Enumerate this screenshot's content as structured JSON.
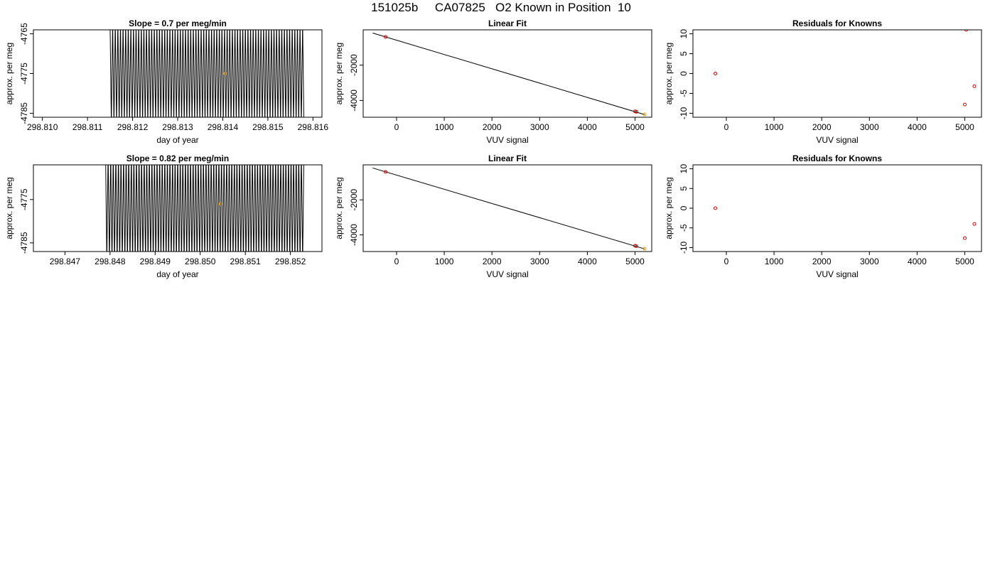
{
  "page": {
    "title": "151025b     CA07825   O2 Known in Position  10"
  },
  "chart_data": [
    {
      "type": "line",
      "title": "Slope =  0.7  per meg/min",
      "xlabel": "day of year",
      "ylabel": "approx. per meg",
      "xlim": [
        298.8098,
        298.8162
      ],
      "ylim": [
        -4786,
        -4764
      ],
      "xticks": [
        298.81,
        298.811,
        298.812,
        298.813,
        298.814,
        298.815,
        298.816
      ],
      "xtick_labels": [
        "298.810",
        "298.811",
        "298.812",
        "298.813",
        "298.814",
        "298.815",
        "298.816"
      ],
      "yticks": [
        -4765,
        -4775,
        -4785
      ],
      "ytick_labels": [
        "-4765",
        "-4775",
        "-4785"
      ],
      "series": [
        {
          "color": "#000000",
          "trace": {
            "x_start": 298.8115,
            "x_end": 298.8158,
            "n_points": 150,
            "y_low": -4788,
            "y_high": -4762
          }
        }
      ],
      "marker": {
        "x": 298.81405,
        "y": -4775,
        "color": "#e89b00"
      }
    },
    {
      "type": "scatter",
      "title": "Linear Fit",
      "xlabel": "VUV signal",
      "ylabel": "approx. per meg",
      "xlim": [
        -700,
        5350
      ],
      "ylim": [
        -4950,
        0
      ],
      "xticks": [
        0,
        1000,
        2000,
        3000,
        4000,
        5000
      ],
      "xtick_labels": [
        "0",
        "1000",
        "2000",
        "3000",
        "4000",
        "5000"
      ],
      "yticks": [
        -2000,
        -4000
      ],
      "ytick_labels": [
        "-2000",
        "-4000"
      ],
      "fit_line": {
        "x": [
          -500,
          5200
        ],
        "y": [
          -180,
          -4800
        ]
      },
      "points": [
        {
          "x": -230,
          "y": -400,
          "color": "#cc0000"
        },
        {
          "x": 5000,
          "y": -4620,
          "color": "#cc0000"
        },
        {
          "x": 5030,
          "y": -4640,
          "color": "#cc0000"
        },
        {
          "x": 5200,
          "y": -4790,
          "color": "#e89b00"
        }
      ]
    },
    {
      "type": "scatter",
      "title": "Residuals for Knowns",
      "xlabel": "VUV signal",
      "ylabel": "approx. per meg",
      "xlim": [
        -700,
        5350
      ],
      "ylim": [
        -11,
        11
      ],
      "xticks": [
        0,
        1000,
        2000,
        3000,
        4000,
        5000
      ],
      "xtick_labels": [
        "0",
        "1000",
        "2000",
        "3000",
        "4000",
        "5000"
      ],
      "yticks": [
        10,
        5,
        0,
        -5,
        -10
      ],
      "ytick_labels": [
        "10",
        "5",
        "0",
        "-5",
        "-10"
      ],
      "points": [
        {
          "x": -230,
          "y": 0,
          "color": "#cc0000"
        },
        {
          "x": 5030,
          "y": 11,
          "color": "#cc0000"
        },
        {
          "x": 5200,
          "y": -3.2,
          "color": "#cc0000"
        },
        {
          "x": 5000,
          "y": -7.8,
          "color": "#cc0000"
        }
      ]
    },
    {
      "type": "line",
      "title": "Slope =  0.82  per meg/min",
      "xlabel": "day of year",
      "ylabel": "approx. per meg",
      "xlim": [
        298.8463,
        298.8527
      ],
      "ylim": [
        -4787,
        -4767
      ],
      "xticks": [
        298.847,
        298.848,
        298.849,
        298.85,
        298.851,
        298.852
      ],
      "xtick_labels": [
        "298.847",
        "298.848",
        "298.849",
        "298.850",
        "298.851",
        "298.852"
      ],
      "yticks": [
        -4775,
        -4785
      ],
      "ytick_labels": [
        "-4775",
        "-4785"
      ],
      "series": [
        {
          "color": "#000000",
          "trace": {
            "x_start": 298.8479,
            "x_end": 298.8523,
            "n_points": 155,
            "y_low": -4790,
            "y_high": -4764
          }
        }
      ],
      "marker": {
        "x": 298.85045,
        "y": -4776,
        "color": "#e89b00"
      }
    },
    {
      "type": "scatter",
      "title": "Linear Fit",
      "xlabel": "VUV signal",
      "ylabel": "approx. per meg",
      "xlim": [
        -700,
        5350
      ],
      "ylim": [
        -4950,
        0
      ],
      "xticks": [
        0,
        1000,
        2000,
        3000,
        4000,
        5000
      ],
      "xtick_labels": [
        "0",
        "1000",
        "2000",
        "3000",
        "4000",
        "5000"
      ],
      "yticks": [
        -2000,
        -4000
      ],
      "ytick_labels": [
        "-2000",
        "-4000"
      ],
      "fit_line": {
        "x": [
          -500,
          5200
        ],
        "y": [
          -180,
          -4800
        ]
      },
      "points": [
        {
          "x": -230,
          "y": -400,
          "color": "#cc0000"
        },
        {
          "x": 5000,
          "y": -4620,
          "color": "#cc0000"
        },
        {
          "x": 5030,
          "y": -4640,
          "color": "#cc0000"
        },
        {
          "x": 5200,
          "y": -4790,
          "color": "#e89b00"
        }
      ]
    },
    {
      "type": "scatter",
      "title": "Residuals for Knowns",
      "xlabel": "VUV signal",
      "ylabel": "approx. per meg",
      "xlim": [
        -700,
        5350
      ],
      "ylim": [
        -11,
        11
      ],
      "xticks": [
        0,
        1000,
        2000,
        3000,
        4000,
        5000
      ],
      "xtick_labels": [
        "0",
        "1000",
        "2000",
        "3000",
        "4000",
        "5000"
      ],
      "yticks": [
        10,
        5,
        0,
        -5,
        -10
      ],
      "ytick_labels": [
        "10",
        "5",
        "0",
        "-5",
        "-10"
      ],
      "points": [
        {
          "x": -230,
          "y": 0,
          "color": "#cc0000"
        },
        {
          "x": 5200,
          "y": -4,
          "color": "#cc0000"
        },
        {
          "x": 5000,
          "y": -7.6,
          "color": "#cc0000"
        }
      ]
    }
  ]
}
